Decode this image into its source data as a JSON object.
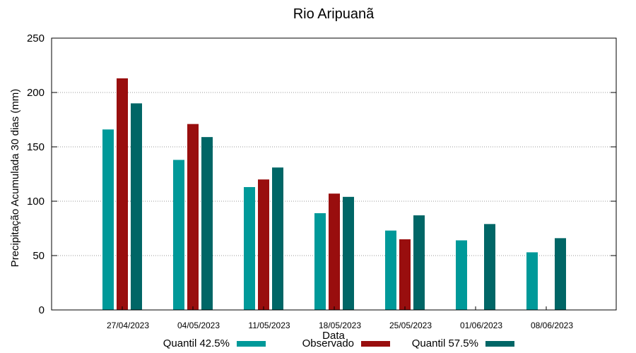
{
  "chart_data": {
    "type": "bar",
    "title": "Rio Aripuanã",
    "xlabel": "Data",
    "ylabel": "Precipitação Acumulada 30 dias (mm)",
    "ylim": [
      0,
      250
    ],
    "yticks": [
      0,
      50,
      100,
      150,
      200,
      250
    ],
    "grid": true,
    "legend_position": "bottom",
    "categories": [
      "27/04/2023",
      "04/05/2023",
      "11/05/2023",
      "18/05/2023",
      "25/05/2023",
      "01/06/2023",
      "08/06/2023"
    ],
    "series": [
      {
        "name": "Quantil 42.5%",
        "color": "#009999",
        "values": [
          166,
          138,
          113,
          89,
          73,
          64,
          53
        ]
      },
      {
        "name": "Observado",
        "color": "#990e0e",
        "values": [
          213,
          171,
          120,
          107,
          65,
          null,
          null
        ]
      },
      {
        "name": "Quantil 57.5%",
        "color": "#006666",
        "values": [
          190,
          159,
          131,
          104,
          87,
          79,
          66
        ]
      }
    ]
  }
}
